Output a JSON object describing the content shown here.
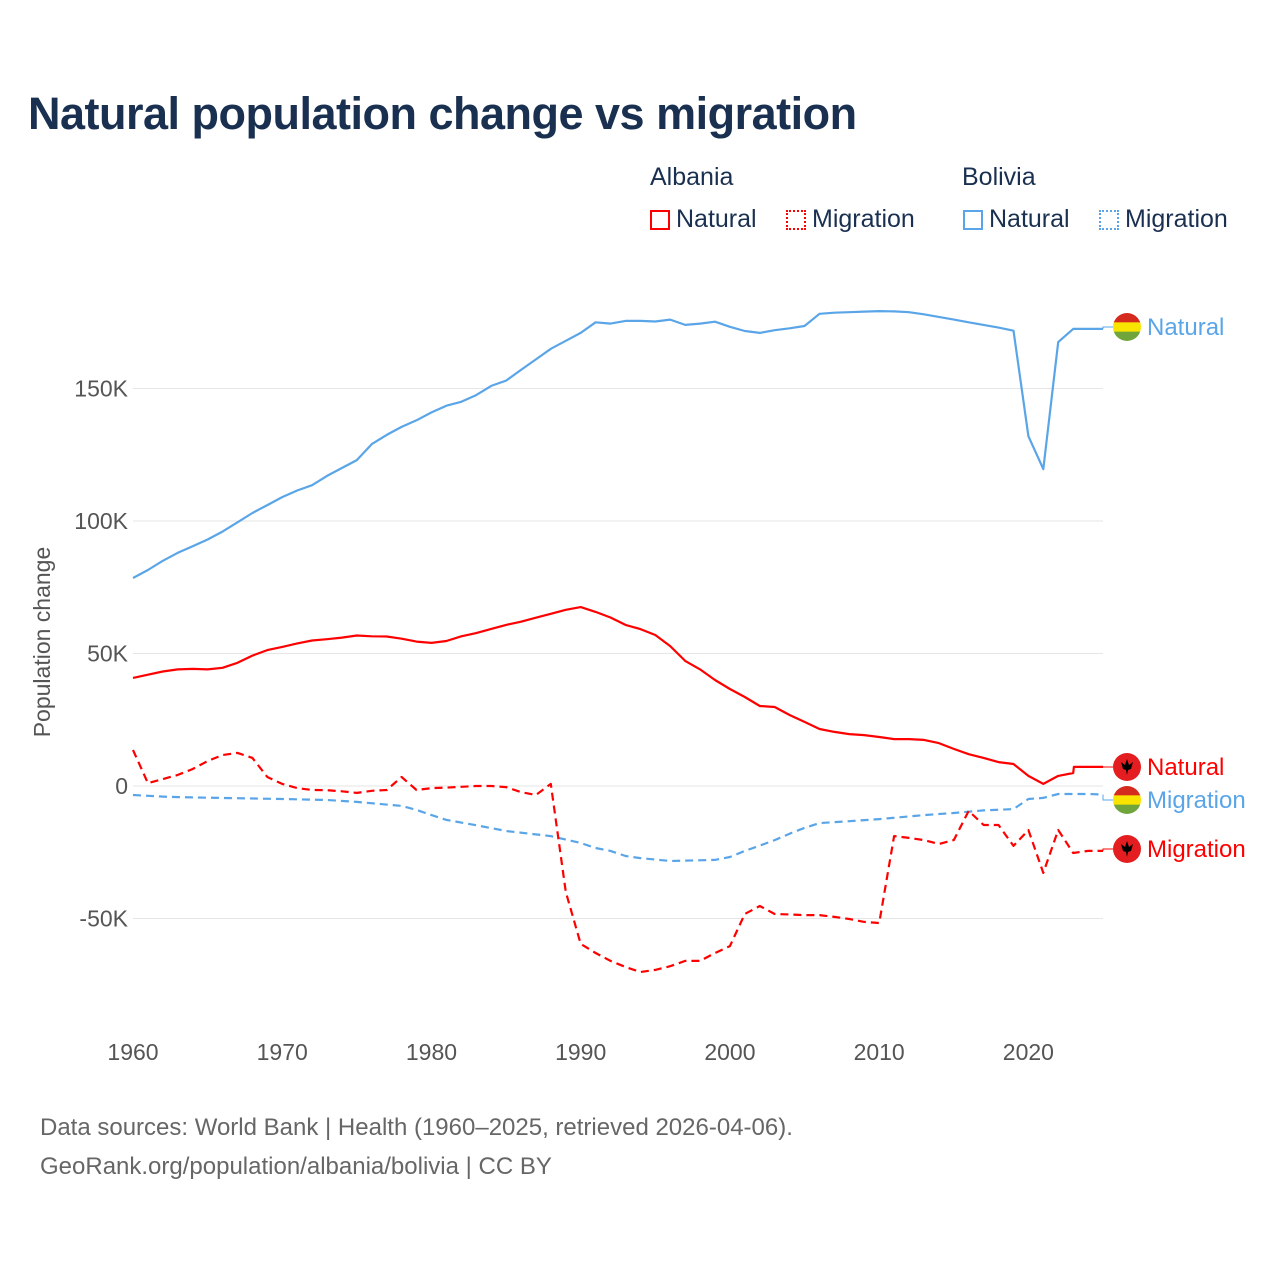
{
  "chart_data": {
    "type": "line",
    "title": "Natural population change vs migration",
    "ylabel": "Population change",
    "xlabel": "",
    "xlim": [
      1960,
      2025
    ],
    "ylim": [
      -80000,
      185000
    ],
    "x_ticks": [
      1960,
      1970,
      1980,
      1990,
      2000,
      2010,
      2020
    ],
    "y_ticks": [
      -50000,
      0,
      50000,
      100000,
      150000
    ],
    "y_tick_labels": [
      "-50K",
      "0",
      "50K",
      "100K",
      "150K"
    ],
    "grid": true,
    "legend": {
      "placement": "top-right",
      "groups": [
        {
          "country": "Albania",
          "items": [
            "Natural",
            "Migration"
          ]
        },
        {
          "country": "Bolivia",
          "items": [
            "Natural",
            "Migration"
          ]
        }
      ]
    },
    "series": [
      {
        "name": "Bolivia Natural",
        "country": "Bolivia",
        "kind": "Natural",
        "color": "#5aa5e8",
        "dash": "solid",
        "end_label": "Natural",
        "flag": "bolivia",
        "points": [
          [
            1960,
            78500
          ],
          [
            1961,
            81500
          ],
          [
            1962,
            85000
          ],
          [
            1963,
            88000
          ],
          [
            1964,
            90500
          ],
          [
            1965,
            93000
          ],
          [
            1966,
            96000
          ],
          [
            1967,
            99500
          ],
          [
            1968,
            103000
          ],
          [
            1969,
            106000
          ],
          [
            1970,
            109000
          ],
          [
            1971,
            111500
          ],
          [
            1972,
            113500
          ],
          [
            1973,
            117000
          ],
          [
            1974,
            120000
          ],
          [
            1975,
            123000
          ],
          [
            1976,
            129000
          ],
          [
            1977,
            132500
          ],
          [
            1978,
            135500
          ],
          [
            1979,
            138000
          ],
          [
            1980,
            141000
          ],
          [
            1981,
            143500
          ],
          [
            1982,
            145000
          ],
          [
            1983,
            147500
          ],
          [
            1984,
            151000
          ],
          [
            1985,
            153000
          ],
          [
            1986,
            157000
          ],
          [
            1987,
            161000
          ],
          [
            1988,
            165000
          ],
          [
            1989,
            168000
          ],
          [
            1990,
            171000
          ],
          [
            1991,
            175000
          ],
          [
            1992,
            174500
          ],
          [
            1993,
            175500
          ],
          [
            1994,
            175500
          ],
          [
            1995,
            175300
          ],
          [
            1996,
            176000
          ],
          [
            1997,
            174000
          ],
          [
            1998,
            174500
          ],
          [
            1999,
            175200
          ],
          [
            2000,
            173300
          ],
          [
            2001,
            171700
          ],
          [
            2002,
            171000
          ],
          [
            2003,
            172000
          ],
          [
            2004,
            172700
          ],
          [
            2005,
            173600
          ],
          [
            2006,
            178200
          ],
          [
            2007,
            178600
          ],
          [
            2008,
            178800
          ],
          [
            2009,
            179000
          ],
          [
            2010,
            179200
          ],
          [
            2011,
            179100
          ],
          [
            2012,
            178800
          ],
          [
            2013,
            178000
          ],
          [
            2014,
            177000
          ],
          [
            2015,
            176000
          ],
          [
            2016,
            175000
          ],
          [
            2017,
            174000
          ],
          [
            2018,
            173000
          ],
          [
            2019,
            171800
          ],
          [
            2020,
            132000
          ],
          [
            2021,
            119600
          ],
          [
            2022,
            167500
          ],
          [
            2023,
            172500
          ],
          [
            2024,
            172500
          ],
          [
            2025,
            172500
          ]
        ]
      },
      {
        "name": "Bolivia Migration",
        "country": "Bolivia",
        "kind": "Migration",
        "color": "#5aa5e8",
        "dash": "dashed",
        "end_label": "Migration",
        "flag": "bolivia",
        "points": [
          [
            1960,
            -3400
          ],
          [
            1961,
            -3700
          ],
          [
            1962,
            -4000
          ],
          [
            1963,
            -4200
          ],
          [
            1965,
            -4400
          ],
          [
            1970,
            -4900
          ],
          [
            1973,
            -5300
          ],
          [
            1975,
            -6000
          ],
          [
            1978,
            -7500
          ],
          [
            1979,
            -9000
          ],
          [
            1980,
            -11000
          ],
          [
            1981,
            -12800
          ],
          [
            1983,
            -14800
          ],
          [
            1985,
            -17000
          ],
          [
            1988,
            -18900
          ],
          [
            1990,
            -21500
          ],
          [
            1991,
            -23400
          ],
          [
            1992,
            -24500
          ],
          [
            1993,
            -26400
          ],
          [
            1994,
            -27200
          ],
          [
            1996,
            -28300
          ],
          [
            1999,
            -27900
          ],
          [
            2000,
            -26800
          ],
          [
            2001,
            -24500
          ],
          [
            2002,
            -22500
          ],
          [
            2003,
            -20400
          ],
          [
            2004,
            -18000
          ],
          [
            2005,
            -15800
          ],
          [
            2006,
            -14000
          ],
          [
            2008,
            -13300
          ],
          [
            2010,
            -12500
          ],
          [
            2013,
            -11000
          ],
          [
            2015,
            -10200
          ],
          [
            2017,
            -9200
          ],
          [
            2019,
            -8700
          ],
          [
            2020,
            -4900
          ],
          [
            2021,
            -4500
          ],
          [
            2022,
            -3000
          ],
          [
            2024,
            -3000
          ],
          [
            2025,
            -3200
          ]
        ]
      },
      {
        "name": "Albania Natural",
        "country": "Albania",
        "kind": "Natural",
        "color": "#ff0000",
        "dash": "solid",
        "end_label": "Natural",
        "flag": "albania",
        "points": [
          [
            1960,
            40800
          ],
          [
            1961,
            42000
          ],
          [
            1962,
            43200
          ],
          [
            1963,
            44000
          ],
          [
            1964,
            44200
          ],
          [
            1965,
            44000
          ],
          [
            1966,
            44600
          ],
          [
            1967,
            46500
          ],
          [
            1968,
            49200
          ],
          [
            1969,
            51300
          ],
          [
            1970,
            52500
          ],
          [
            1971,
            53800
          ],
          [
            1972,
            54900
          ],
          [
            1973,
            55400
          ],
          [
            1974,
            56000
          ],
          [
            1975,
            56800
          ],
          [
            1976,
            56500
          ],
          [
            1977,
            56400
          ],
          [
            1978,
            55600
          ],
          [
            1979,
            54500
          ],
          [
            1980,
            54000
          ],
          [
            1981,
            54700
          ],
          [
            1982,
            56500
          ],
          [
            1983,
            57700
          ],
          [
            1984,
            59300
          ],
          [
            1985,
            60800
          ],
          [
            1986,
            62000
          ],
          [
            1987,
            63500
          ],
          [
            1988,
            65000
          ],
          [
            1989,
            66500
          ],
          [
            1990,
            67500
          ],
          [
            1991,
            65700
          ],
          [
            1992,
            63600
          ],
          [
            1993,
            60800
          ],
          [
            1994,
            59200
          ],
          [
            1995,
            57000
          ],
          [
            1996,
            52800
          ],
          [
            1997,
            47200
          ],
          [
            1998,
            44000
          ],
          [
            1999,
            40000
          ],
          [
            2000,
            36600
          ],
          [
            2001,
            33600
          ],
          [
            2002,
            30200
          ],
          [
            2003,
            29800
          ],
          [
            2004,
            26800
          ],
          [
            2005,
            24200
          ],
          [
            2006,
            21500
          ],
          [
            2007,
            20400
          ],
          [
            2008,
            19600
          ],
          [
            2009,
            19200
          ],
          [
            2010,
            18500
          ],
          [
            2011,
            17700
          ],
          [
            2012,
            17700
          ],
          [
            2013,
            17400
          ],
          [
            2014,
            16200
          ],
          [
            2015,
            14000
          ],
          [
            2016,
            12000
          ],
          [
            2017,
            10600
          ],
          [
            2018,
            9000
          ],
          [
            2019,
            8300
          ],
          [
            2020,
            3800
          ],
          [
            2021,
            800
          ],
          [
            2022,
            3800
          ],
          [
            2023,
            4900
          ],
          [
            2023.05,
            7200
          ],
          [
            2025,
            7200
          ]
        ]
      },
      {
        "name": "Albania Migration",
        "country": "Albania",
        "kind": "Migration",
        "color": "#ff0000",
        "dash": "dashed",
        "end_label": "Migration",
        "flag": "albania",
        "points": [
          [
            1960,
            13600
          ],
          [
            1961,
            1100
          ],
          [
            1962,
            2600
          ],
          [
            1963,
            4200
          ],
          [
            1964,
            6400
          ],
          [
            1965,
            9400
          ],
          [
            1966,
            11700
          ],
          [
            1967,
            12500
          ],
          [
            1968,
            10600
          ],
          [
            1969,
            3400
          ],
          [
            1970,
            800
          ],
          [
            1971,
            -800
          ],
          [
            1972,
            -1500
          ],
          [
            1973,
            -1600
          ],
          [
            1974,
            -2000
          ],
          [
            1975,
            -2600
          ],
          [
            1976,
            -1800
          ],
          [
            1977,
            -1500
          ],
          [
            1978,
            3400
          ],
          [
            1979,
            -1500
          ],
          [
            1980,
            -800
          ],
          [
            1981,
            -600
          ],
          [
            1982,
            -300
          ],
          [
            1983,
            0
          ],
          [
            1984,
            0
          ],
          [
            1985,
            -400
          ],
          [
            1986,
            -2300
          ],
          [
            1987,
            -3400
          ],
          [
            1988,
            800
          ],
          [
            1989,
            -40000
          ],
          [
            1990,
            -59600
          ],
          [
            1991,
            -63000
          ],
          [
            1992,
            -66000
          ],
          [
            1993,
            -68300
          ],
          [
            1994,
            -70200
          ],
          [
            1995,
            -69400
          ],
          [
            1996,
            -68000
          ],
          [
            1997,
            -66000
          ],
          [
            1998,
            -66000
          ],
          [
            1999,
            -63000
          ],
          [
            2000,
            -60400
          ],
          [
            2001,
            -48300
          ],
          [
            2002,
            -45300
          ],
          [
            2003,
            -48300
          ],
          [
            2004,
            -48500
          ],
          [
            2005,
            -48700
          ],
          [
            2006,
            -48700
          ],
          [
            2007,
            -49400
          ],
          [
            2008,
            -50200
          ],
          [
            2009,
            -51300
          ],
          [
            2010,
            -51700
          ],
          [
            2011,
            -18900
          ],
          [
            2012,
            -19600
          ],
          [
            2013,
            -20400
          ],
          [
            2014,
            -21900
          ],
          [
            2015,
            -20400
          ],
          [
            2016,
            -9400
          ],
          [
            2017,
            -14700
          ],
          [
            2018,
            -14700
          ],
          [
            2019,
            -22600
          ],
          [
            2020,
            -16600
          ],
          [
            2021,
            -32800
          ],
          [
            2022,
            -16600
          ],
          [
            2023,
            -25300
          ],
          [
            2024,
            -24500
          ],
          [
            2025,
            -24500
          ]
        ]
      }
    ]
  },
  "source": {
    "line1": "Data sources: World Bank | Health (1960–2025, retrieved 2026-04-06).",
    "line2": "GeoRank.org/population/albania/bolivia | CC BY"
  },
  "colors": {
    "albania": "#ff0000",
    "bolivia": "#5aa5e8",
    "title": "#1a3050"
  }
}
